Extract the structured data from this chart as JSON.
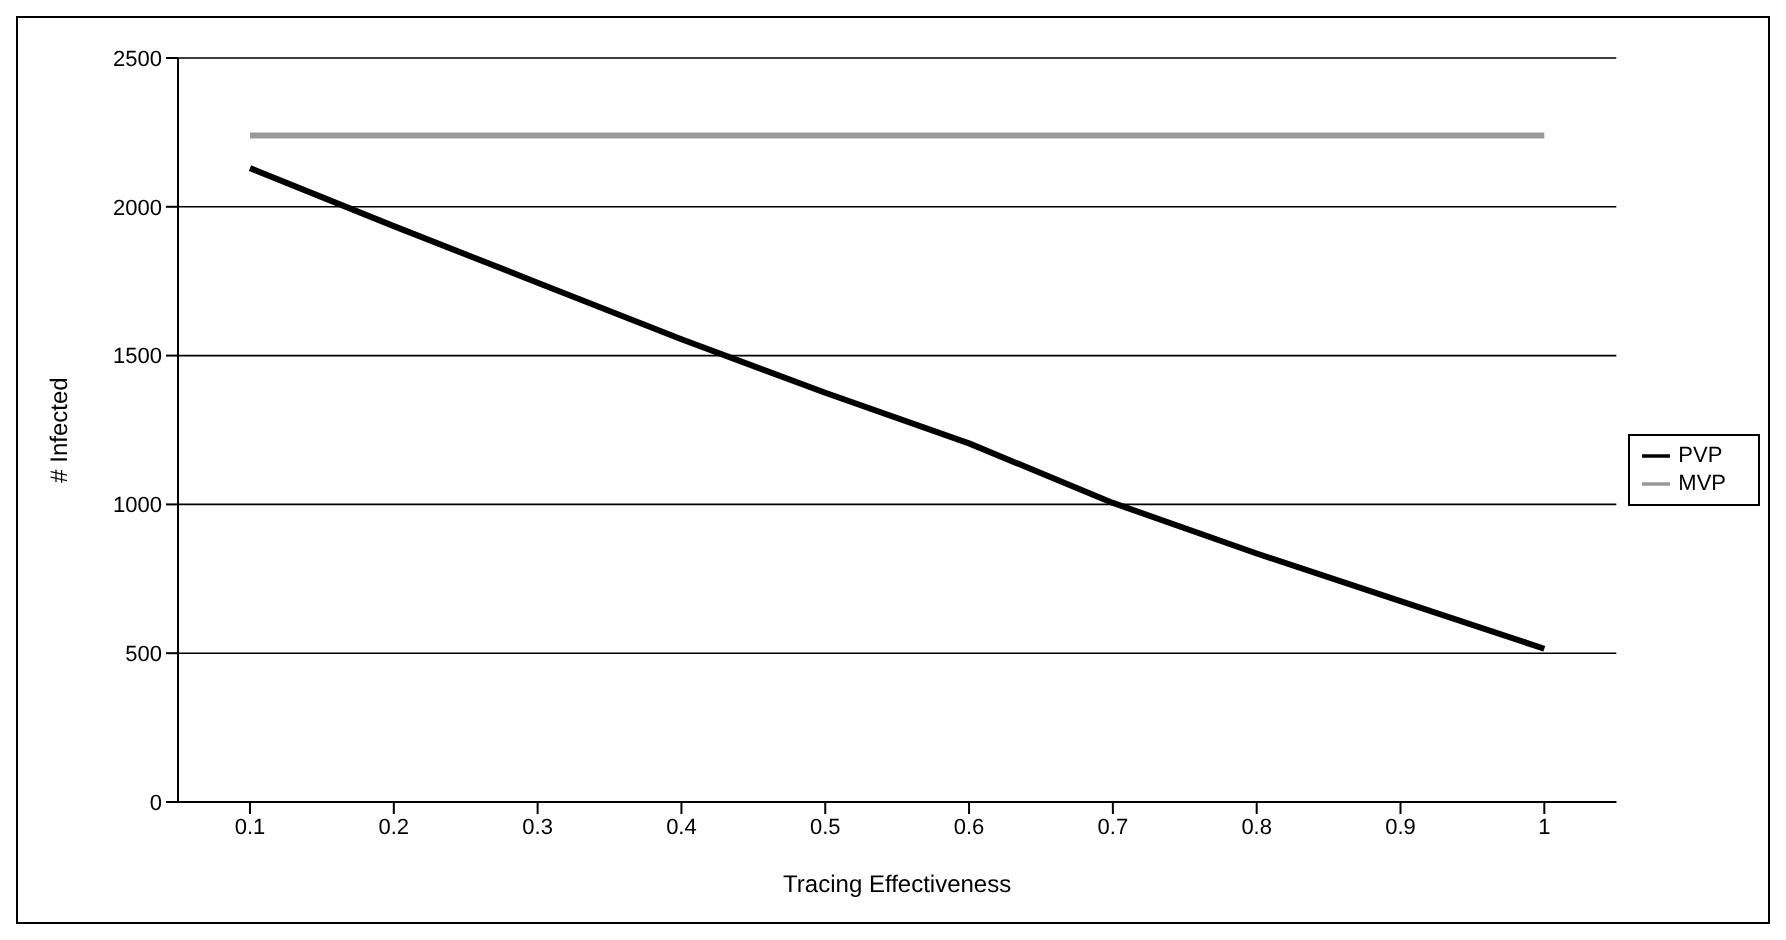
{
  "chart_data": {
    "type": "line",
    "xlabel": "Tracing Effectiveness",
    "ylabel": "# Infected",
    "categories": [
      "0.1",
      "0.2",
      "0.3",
      "0.4",
      "0.5",
      "0.6",
      "0.7",
      "0.8",
      "0.9",
      "1"
    ],
    "series": [
      {
        "name": "PVP",
        "color": "#000000",
        "values": [
          2130,
          1935,
          1745,
          1555,
          1375,
          1205,
          1005,
          835,
          675,
          515
        ]
      },
      {
        "name": "MVP",
        "color": "#999999",
        "values": [
          2240,
          2240,
          2240,
          2240,
          2240,
          2240,
          2240,
          2240,
          2240,
          2240
        ]
      }
    ],
    "ylim": [
      0,
      2500
    ],
    "yticks": [
      0,
      500,
      1000,
      1500,
      2000,
      2500
    ],
    "grid": "y",
    "legend": "right",
    "marker": "none",
    "line_style": "solid"
  }
}
